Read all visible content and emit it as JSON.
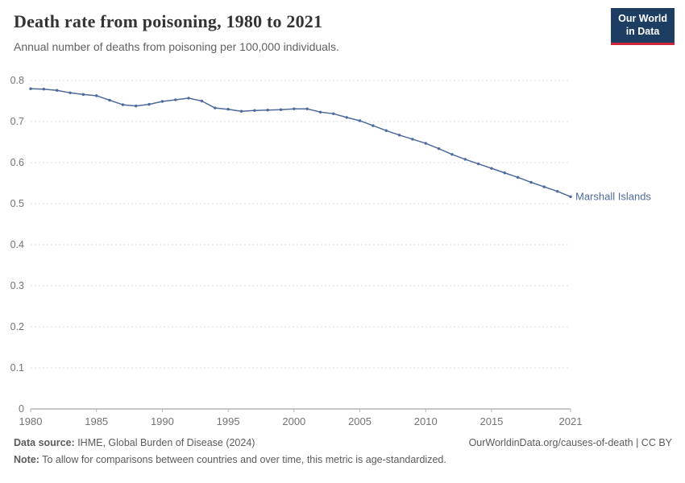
{
  "header": {
    "title": "Death rate from poisoning, 1980 to 2021",
    "subtitle": "Annual number of deaths from poisoning per 100,000 individuals.",
    "logo": {
      "line1": "Our World",
      "line2": "in Data"
    }
  },
  "chart_data": {
    "type": "line",
    "title": "Death rate from poisoning, 1980 to 2021",
    "xlabel": "",
    "ylabel": "",
    "grid": true,
    "legend_position": "end-of-line-label",
    "ylim": [
      0,
      0.8
    ],
    "yticks": [
      0,
      0.1,
      0.2,
      0.3,
      0.4,
      0.5,
      0.6,
      0.7,
      0.8
    ],
    "xticks": [
      1980,
      1985,
      1990,
      1995,
      2000,
      2005,
      2010,
      2015,
      2021
    ],
    "x": [
      1980,
      1981,
      1982,
      1983,
      1984,
      1985,
      1986,
      1987,
      1988,
      1989,
      1990,
      1991,
      1992,
      1993,
      1994,
      1995,
      1996,
      1997,
      1998,
      1999,
      2000,
      2001,
      2002,
      2003,
      2004,
      2005,
      2006,
      2007,
      2008,
      2009,
      2010,
      2011,
      2012,
      2013,
      2014,
      2015,
      2016,
      2017,
      2018,
      2019,
      2020,
      2021
    ],
    "series": [
      {
        "name": "Marshall Islands",
        "color": "#4c6a9c",
        "values": [
          0.78,
          0.779,
          0.776,
          0.77,
          0.766,
          0.763,
          0.752,
          0.741,
          0.738,
          0.742,
          0.749,
          0.753,
          0.757,
          0.75,
          0.733,
          0.73,
          0.725,
          0.727,
          0.728,
          0.729,
          0.731,
          0.731,
          0.723,
          0.719,
          0.71,
          0.702,
          0.69,
          0.678,
          0.667,
          0.657,
          0.647,
          0.634,
          0.62,
          0.608,
          0.597,
          0.586,
          0.575,
          0.564,
          0.552,
          0.541,
          0.53,
          0.517
        ]
      }
    ]
  },
  "footer": {
    "source_label": "Data source:",
    "source_text": " IHME, Global Burden of Disease (2024)",
    "link": "OurWorldinData.org/causes-of-death | CC BY",
    "note_label": "Note:",
    "note_text": " To allow for comparisons between countries and over time, this metric is age-standardized."
  }
}
